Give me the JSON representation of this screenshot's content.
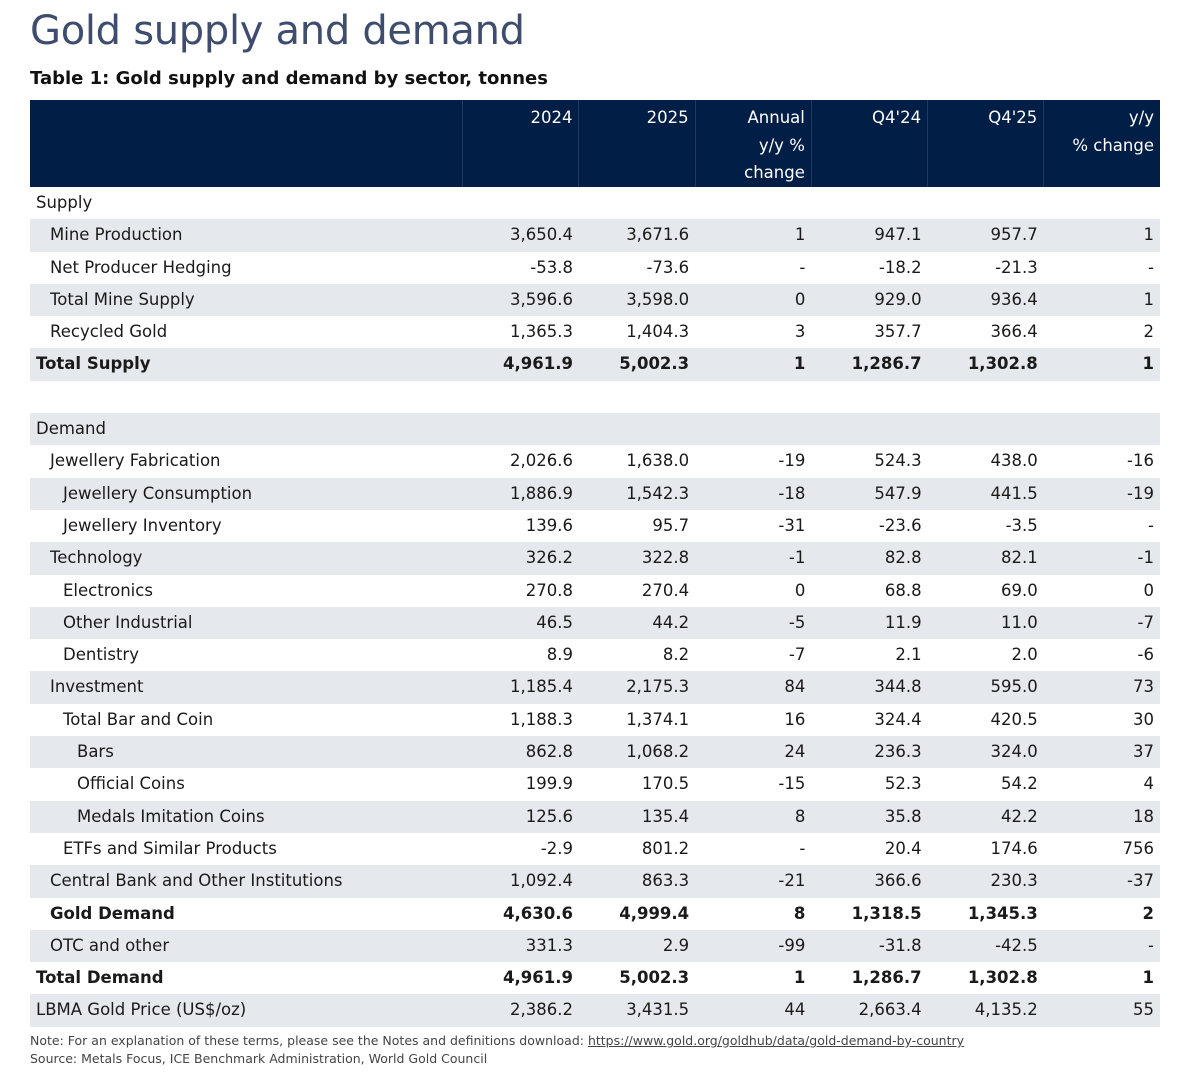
{
  "title": "Gold supply and demand",
  "table_title": "Table 1: Gold supply and demand by sector, tonnes",
  "columns": [
    {
      "line1": "",
      "line2": "",
      "line3": ""
    },
    {
      "line1": "2024",
      "line2": "",
      "line3": ""
    },
    {
      "line1": "2025",
      "line2": "",
      "line3": ""
    },
    {
      "line1": "Annual",
      "line2": "y/y %",
      "line3": "change"
    },
    {
      "line1": "Q4'24",
      "line2": "",
      "line3": ""
    },
    {
      "line1": "Q4'25",
      "line2": "",
      "line3": ""
    },
    {
      "line1": "y/y",
      "line2": "% change",
      "line3": ""
    }
  ],
  "rows": [
    {
      "label": "Supply",
      "indent": 0,
      "bold": false,
      "shade": false,
      "values": [
        "",
        "",
        "",
        "",
        "",
        ""
      ]
    },
    {
      "label": "Mine Production",
      "indent": 1,
      "bold": false,
      "shade": true,
      "values": [
        "3,650.4",
        "3,671.6",
        "1",
        "947.1",
        "957.7",
        "1"
      ]
    },
    {
      "label": "Net Producer Hedging",
      "indent": 1,
      "bold": false,
      "shade": false,
      "values": [
        "-53.8",
        "-73.6",
        "-",
        "-18.2",
        "-21.3",
        "-"
      ]
    },
    {
      "label": "Total Mine Supply",
      "indent": 1,
      "bold": false,
      "shade": true,
      "values": [
        "3,596.6",
        "3,598.0",
        "0",
        "929.0",
        "936.4",
        "1"
      ]
    },
    {
      "label": "Recycled Gold",
      "indent": 1,
      "bold": false,
      "shade": false,
      "values": [
        "1,365.3",
        "1,404.3",
        "3",
        "357.7",
        "366.4",
        "2"
      ]
    },
    {
      "label": "Total Supply",
      "indent": 0,
      "bold": true,
      "shade": true,
      "values": [
        "4,961.9",
        "5,002.3",
        "1",
        "1,286.7",
        "1,302.8",
        "1"
      ]
    },
    {
      "label": "",
      "indent": 0,
      "bold": false,
      "shade": false,
      "values": [
        "",
        "",
        "",
        "",
        "",
        ""
      ]
    },
    {
      "label": "Demand",
      "indent": 0,
      "bold": false,
      "shade": true,
      "values": [
        "",
        "",
        "",
        "",
        "",
        ""
      ]
    },
    {
      "label": "Jewellery Fabrication",
      "indent": 1,
      "bold": false,
      "shade": false,
      "values": [
        "2,026.6",
        "1,638.0",
        "-19",
        "524.3",
        "438.0",
        "-16"
      ]
    },
    {
      "label": "Jewellery Consumption",
      "indent": 2,
      "bold": false,
      "shade": true,
      "values": [
        "1,886.9",
        "1,542.3",
        "-18",
        "547.9",
        "441.5",
        "-19"
      ]
    },
    {
      "label": "Jewellery Inventory",
      "indent": 2,
      "bold": false,
      "shade": false,
      "values": [
        "139.6",
        "95.7",
        "-31",
        "-23.6",
        "-3.5",
        "-"
      ]
    },
    {
      "label": "Technology",
      "indent": 1,
      "bold": false,
      "shade": true,
      "values": [
        "326.2",
        "322.8",
        "-1",
        "82.8",
        "82.1",
        "-1"
      ]
    },
    {
      "label": "Electronics",
      "indent": 2,
      "bold": false,
      "shade": false,
      "values": [
        "270.8",
        "270.4",
        "0",
        "68.8",
        "69.0",
        "0"
      ]
    },
    {
      "label": "Other Industrial",
      "indent": 2,
      "bold": false,
      "shade": true,
      "values": [
        "46.5",
        "44.2",
        "-5",
        "11.9",
        "11.0",
        "-7"
      ]
    },
    {
      "label": "Dentistry",
      "indent": 2,
      "bold": false,
      "shade": false,
      "values": [
        "8.9",
        "8.2",
        "-7",
        "2.1",
        "2.0",
        "-6"
      ]
    },
    {
      "label": "Investment",
      "indent": 1,
      "bold": false,
      "shade": true,
      "values": [
        "1,185.4",
        "2,175.3",
        "84",
        "344.8",
        "595.0",
        "73"
      ]
    },
    {
      "label": "Total Bar and Coin",
      "indent": 2,
      "bold": false,
      "shade": false,
      "values": [
        "1,188.3",
        "1,374.1",
        "16",
        "324.4",
        "420.5",
        "30"
      ]
    },
    {
      "label": "Bars",
      "indent": 3,
      "bold": false,
      "shade": true,
      "values": [
        "862.8",
        "1,068.2",
        "24",
        "236.3",
        "324.0",
        "37"
      ]
    },
    {
      "label": "Official Coins",
      "indent": 3,
      "bold": false,
      "shade": false,
      "values": [
        "199.9",
        "170.5",
        "-15",
        "52.3",
        "54.2",
        "4"
      ]
    },
    {
      "label": "Medals Imitation Coins",
      "indent": 3,
      "bold": false,
      "shade": true,
      "values": [
        "125.6",
        "135.4",
        "8",
        "35.8",
        "42.2",
        "18"
      ]
    },
    {
      "label": "ETFs and Similar Products",
      "indent": 2,
      "bold": false,
      "shade": false,
      "values": [
        "-2.9",
        "801.2",
        "-",
        "20.4",
        "174.6",
        "756"
      ]
    },
    {
      "label": "Central Bank and Other Institutions",
      "indent": 1,
      "bold": false,
      "shade": true,
      "values": [
        "1,092.4",
        "863.3",
        "-21",
        "366.6",
        "230.3",
        "-37"
      ]
    },
    {
      "label": "Gold Demand",
      "indent": 1,
      "bold": true,
      "shade": false,
      "values": [
        "4,630.6",
        "4,999.4",
        "8",
        "1,318.5",
        "1,345.3",
        "2"
      ]
    },
    {
      "label": "OTC and other",
      "indent": 1,
      "bold": false,
      "shade": true,
      "values": [
        "331.3",
        "2.9",
        "-99",
        "-31.8",
        "-42.5",
        "-"
      ]
    },
    {
      "label": "Total Demand",
      "indent": 0,
      "bold": true,
      "shade": false,
      "values": [
        "4,961.9",
        "5,002.3",
        "1",
        "1,286.7",
        "1,302.8",
        "1"
      ]
    },
    {
      "label": "LBMA Gold Price (US$/oz)",
      "indent": 0,
      "bold": false,
      "shade": true,
      "values": [
        "2,386.2",
        "3,431.5",
        "44",
        "2,663.4",
        "4,135.2",
        "55"
      ]
    }
  ],
  "notes": {
    "note_prefix": "Note: For an explanation of these terms, please see the Notes and definitions download: ",
    "note_link": "https://www.gold.org/goldhub/data/gold-demand-by-country",
    "source": "Source: Metals Focus, ICE Benchmark Administration, World Gold Council"
  }
}
